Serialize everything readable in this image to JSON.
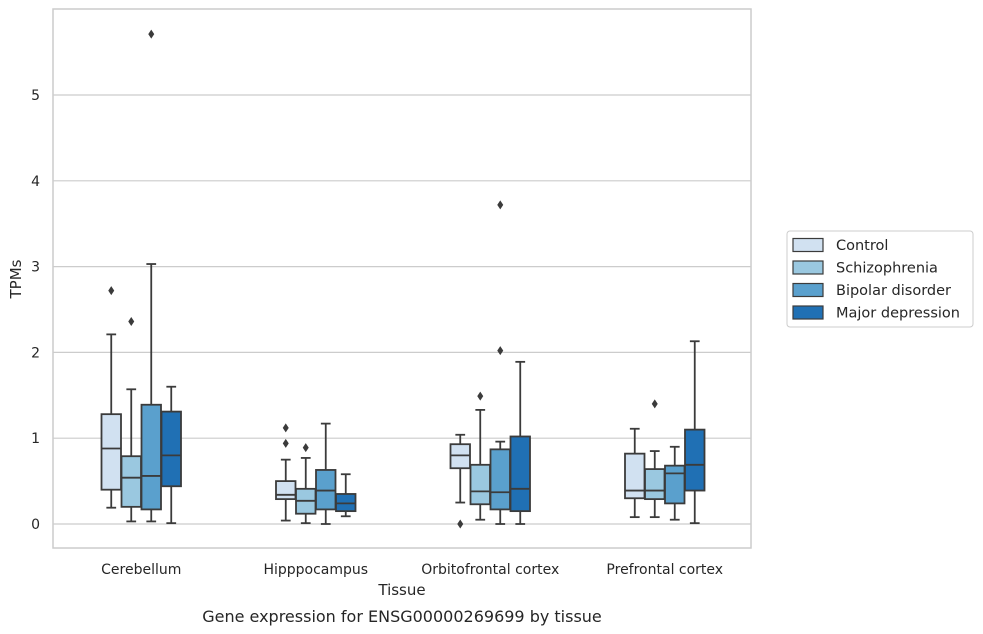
{
  "caption": "Gene expression for ENSG00000269699 by tissue",
  "chart_data": {
    "type": "box",
    "xlabel": "Tissue",
    "ylabel": "TPMs",
    "ylim": [
      -0.28,
      6.05
    ],
    "yticks": [
      0,
      1,
      2,
      3,
      4,
      5
    ],
    "grid": "horizontal",
    "legend_position": "right",
    "categories": [
      "Cerebellum",
      "Hipppocampus",
      "Orbitofrontal cortex",
      "Prefrontal cortex"
    ],
    "series": [
      {
        "name": "Control",
        "color": "#d1e1f1",
        "boxes": [
          {
            "whislo": 0.19,
            "q1": 0.4,
            "med": 0.88,
            "q3": 1.28,
            "whishi": 2.21,
            "fliers": [
              2.72
            ]
          },
          {
            "whislo": 0.04,
            "q1": 0.29,
            "med": 0.34,
            "q3": 0.5,
            "whishi": 0.75,
            "fliers": [
              0.94,
              1.12
            ]
          },
          {
            "whislo": 0.25,
            "q1": 0.65,
            "med": 0.8,
            "q3": 0.93,
            "whishi": 1.04,
            "fliers": [
              0.0
            ]
          },
          {
            "whislo": 0.08,
            "q1": 0.3,
            "med": 0.39,
            "q3": 0.82,
            "whishi": 1.11,
            "fliers": []
          }
        ]
      },
      {
        "name": "Schizophrenia",
        "color": "#9ac8e0",
        "boxes": [
          {
            "whislo": 0.03,
            "q1": 0.2,
            "med": 0.54,
            "q3": 0.79,
            "whishi": 1.57,
            "fliers": [
              2.36
            ]
          },
          {
            "whislo": 0.01,
            "q1": 0.12,
            "med": 0.27,
            "q3": 0.41,
            "whishi": 0.77,
            "fliers": [
              0.89
            ]
          },
          {
            "whislo": 0.05,
            "q1": 0.23,
            "med": 0.38,
            "q3": 0.69,
            "whishi": 1.33,
            "fliers": [
              1.49
            ]
          },
          {
            "whislo": 0.08,
            "q1": 0.29,
            "med": 0.39,
            "q3": 0.64,
            "whishi": 0.85,
            "fliers": [
              1.4
            ]
          }
        ]
      },
      {
        "name": "Bipolar disorder",
        "color": "#5aa0cd",
        "boxes": [
          {
            "whislo": 0.03,
            "q1": 0.17,
            "med": 0.56,
            "q3": 1.39,
            "whishi": 3.03,
            "fliers": [
              5.71
            ]
          },
          {
            "whislo": 0.0,
            "q1": 0.17,
            "med": 0.39,
            "q3": 0.63,
            "whishi": 1.17,
            "fliers": []
          },
          {
            "whislo": 0.0,
            "q1": 0.17,
            "med": 0.37,
            "q3": 0.87,
            "whishi": 0.96,
            "fliers": [
              2.02,
              3.72
            ]
          },
          {
            "whislo": 0.05,
            "q1": 0.24,
            "med": 0.59,
            "q3": 0.68,
            "whishi": 0.9,
            "fliers": []
          }
        ]
      },
      {
        "name": "Major depression",
        "color": "#2070b4",
        "boxes": [
          {
            "whislo": 0.01,
            "q1": 0.44,
            "med": 0.8,
            "q3": 1.31,
            "whishi": 1.6,
            "fliers": []
          },
          {
            "whislo": 0.09,
            "q1": 0.15,
            "med": 0.24,
            "q3": 0.35,
            "whishi": 0.58,
            "fliers": []
          },
          {
            "whislo": 0.0,
            "q1": 0.15,
            "med": 0.41,
            "q3": 1.02,
            "whishi": 1.89,
            "fliers": []
          },
          {
            "whislo": 0.01,
            "q1": 0.39,
            "med": 0.69,
            "q3": 1.1,
            "whishi": 2.13,
            "fliers": []
          }
        ]
      }
    ]
  }
}
